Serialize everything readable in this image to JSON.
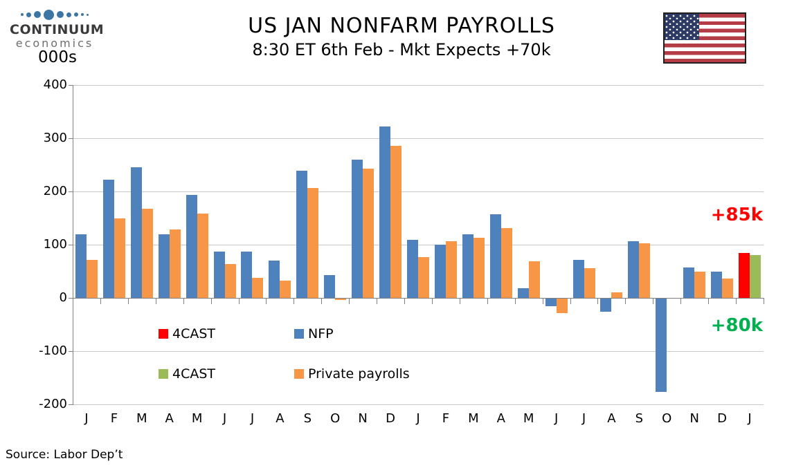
{
  "logo": {
    "brand": "CONTINUUM",
    "sub": "economics"
  },
  "header": {
    "title": "US JAN NONFARM PAYROLLS",
    "subtitle": "8:30 ET 6th Feb - Mkt Expects +70k"
  },
  "axis_unit": "000s",
  "annotations": {
    "nfp_forecast": "+85k",
    "private_forecast": "+80k"
  },
  "colors": {
    "nfp_blue": "#4f81bd",
    "private_orange": "#f79646",
    "forecast_red": "#ff0000",
    "forecast_green": "#9bbb59",
    "annot_red": "#ff0000",
    "annot_green": "#00b050",
    "gridline": "#c8c8c8",
    "axis": "#7f7f7f"
  },
  "legend": [
    {
      "label": "4CAST",
      "color": "#ff0000"
    },
    {
      "label": "NFP",
      "color": "#4f81bd"
    },
    {
      "label": "4CAST",
      "color": "#9bbb59"
    },
    {
      "label": "Private payrolls",
      "color": "#f79646"
    }
  ],
  "source": "Source: Labor Dep’t",
  "chart_data": {
    "type": "bar",
    "title": "US JAN NONFARM PAYROLLS",
    "subtitle": "8:30 ET 6th Feb - Mkt Expects +70k",
    "ylabel": "000s",
    "ylim": [
      -200,
      400
    ],
    "yticks": [
      400,
      300,
      200,
      100,
      0,
      -100,
      -200
    ],
    "grid": true,
    "legend_position": "inside-bottom-left",
    "categories": [
      "J",
      "F",
      "M",
      "A",
      "M",
      "J",
      "J",
      "A",
      "S",
      "O",
      "N",
      "D",
      "J",
      "F",
      "M",
      "A",
      "M",
      "J",
      "J",
      "A",
      "S",
      "O",
      "N",
      "D",
      "J"
    ],
    "series": [
      {
        "name": "NFP",
        "color": "#4f81bd",
        "values": [
          120,
          222,
          245,
          119,
          193,
          87,
          87,
          70,
          239,
          43,
          260,
          322,
          109,
          100,
          119,
          157,
          18,
          -14,
          71,
          -25,
          107,
          -175,
          57,
          50,
          null
        ]
      },
      {
        "name": "Private payrolls",
        "color": "#f79646",
        "values": [
          72,
          150,
          168,
          129,
          159,
          64,
          38,
          32,
          207,
          -3,
          243,
          286,
          77,
          106,
          113,
          131,
          69,
          -27,
          56,
          10,
          103,
          0,
          50,
          37,
          null
        ]
      },
      {
        "name": "4CAST NFP forecast",
        "color": "#ff0000",
        "values": [
          null,
          null,
          null,
          null,
          null,
          null,
          null,
          null,
          null,
          null,
          null,
          null,
          null,
          null,
          null,
          null,
          null,
          null,
          null,
          null,
          null,
          null,
          null,
          null,
          85
        ]
      },
      {
        "name": "4CAST Private payrolls forecast",
        "color": "#9bbb59",
        "values": [
          null,
          null,
          null,
          null,
          null,
          null,
          null,
          null,
          null,
          null,
          null,
          null,
          null,
          null,
          null,
          null,
          null,
          null,
          null,
          null,
          null,
          null,
          null,
          null,
          80
        ]
      }
    ]
  }
}
